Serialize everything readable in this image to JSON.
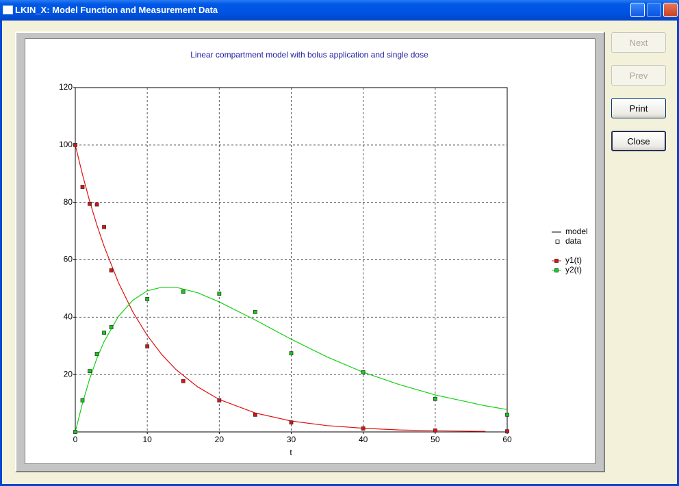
{
  "window": {
    "title": "LKIN_X: Model Function and Measurement Data"
  },
  "buttons": [
    {
      "label": "Next",
      "enabled": false
    },
    {
      "label": "Prev",
      "enabled": false
    },
    {
      "label": "Print",
      "enabled": true
    },
    {
      "label": "Close",
      "enabled": true
    }
  ],
  "chart_data": {
    "type": "line",
    "title": "Linear compartment model with bolus application and single dose",
    "x_label": "t",
    "xlim": [
      0,
      60
    ],
    "ylim": [
      0,
      120
    ],
    "xticks": [
      0,
      10,
      20,
      30,
      40,
      50,
      60
    ],
    "yticks": [
      20,
      40,
      60,
      80,
      100,
      120
    ],
    "grid": true,
    "legend_position": "right",
    "model_label": "model",
    "data_label": "data",
    "model_x": [
      0,
      1,
      2,
      3,
      4,
      6,
      8,
      10,
      12,
      14,
      17,
      20,
      25,
      30,
      35,
      40,
      45,
      50,
      57,
      60
    ],
    "data_x": [
      0,
      1,
      2,
      3,
      4,
      5,
      10,
      15,
      20,
      25,
      30,
      40,
      50,
      60
    ],
    "series": [
      {
        "name": "y1(t)",
        "color": "#e01010",
        "model": [
          100,
          89.7,
          80.4,
          72.1,
          64.7,
          52.0,
          41.8,
          33.6,
          27.0,
          21.7,
          15.7,
          11.3,
          6.6,
          3.8,
          2.2,
          1.3,
          0.7,
          0.4,
          0.2,
          null
        ],
        "data": [
          100,
          85.4,
          79.5,
          79.3,
          71.4,
          56.3,
          29.8,
          17.7,
          11.0,
          6.0,
          3.3,
          1.2,
          0.5,
          0.2
        ]
      },
      {
        "name": "y2(t)",
        "color": "#10d010",
        "model": [
          0,
          10.0,
          18.5,
          25.7,
          31.5,
          40.3,
          45.9,
          49.2,
          50.4,
          50.4,
          48.5,
          45.3,
          39.0,
          32.3,
          26.1,
          20.8,
          16.5,
          12.9,
          9.1,
          7.8
        ],
        "data": [
          0,
          11.0,
          21.2,
          27.2,
          34.6,
          36.5,
          46.3,
          48.9,
          48.2,
          41.8,
          27.4,
          20.8,
          11.5,
          6.0
        ]
      }
    ]
  }
}
